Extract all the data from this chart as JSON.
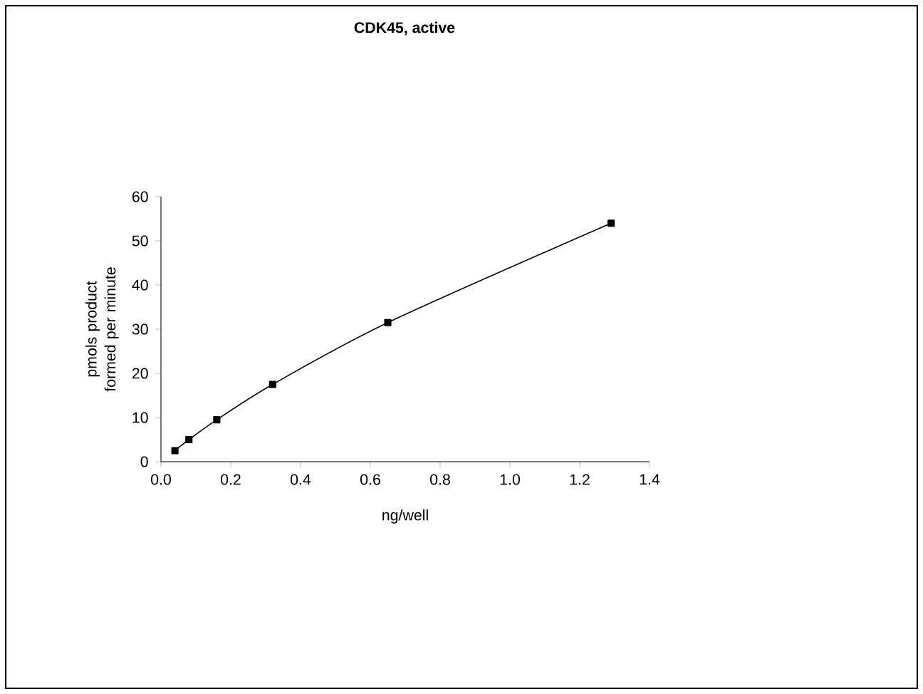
{
  "chart_data": {
    "type": "line",
    "title": "CDK45, active",
    "xlabel": "ng/well",
    "ylabel": "pmols product formed per minute",
    "x": [
      0.04,
      0.08,
      0.16,
      0.32,
      0.65,
      1.29
    ],
    "series": [
      {
        "color": "#000000",
        "values": [
          2.5,
          5,
          9.5,
          17.5,
          31.5,
          54
        ]
      }
    ],
    "xlim": [
      0,
      1.4
    ],
    "xticks": [
      {
        "value": 0,
        "label": "0.0"
      },
      0.2,
      0.4,
      0.6,
      0.8,
      {
        "value": 1,
        "label": "1.0"
      },
      1.2,
      1.4
    ],
    "ylim": [
      0,
      60
    ],
    "yticks": [
      0,
      10,
      20,
      30,
      40,
      50,
      60
    ],
    "marker": "square",
    "line_style": "solid"
  }
}
